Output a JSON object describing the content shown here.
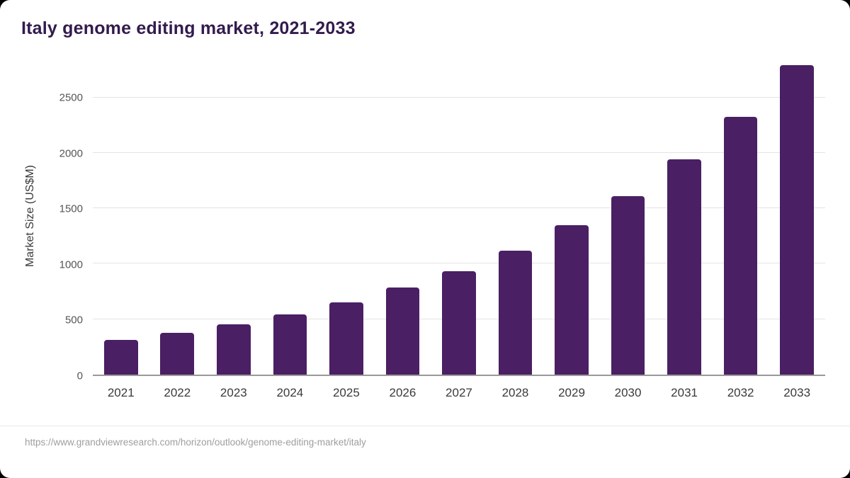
{
  "page": {
    "source_url": "https://www.grandviewresearch.com/horizon/outlook/genome-editing-market/italy"
  },
  "chart_data": {
    "type": "bar",
    "title": "Italy genome editing market, 2021-2033",
    "categories": [
      "2021",
      "2022",
      "2023",
      "2024",
      "2025",
      "2026",
      "2027",
      "2028",
      "2029",
      "2030",
      "2031",
      "2032",
      "2033"
    ],
    "values": [
      310,
      375,
      455,
      540,
      650,
      785,
      935,
      1120,
      1345,
      1610,
      1940,
      2325,
      2790
    ],
    "xlabel": "",
    "ylabel": "Market Size (US$M)",
    "ylim": [
      0,
      2875
    ],
    "yticks": [
      0,
      500,
      1000,
      1500,
      2000,
      2500
    ],
    "grid": true,
    "legend": "none",
    "bar_color": "#4a1f63",
    "title_color": "#331b4d",
    "background": "#ffffff"
  }
}
